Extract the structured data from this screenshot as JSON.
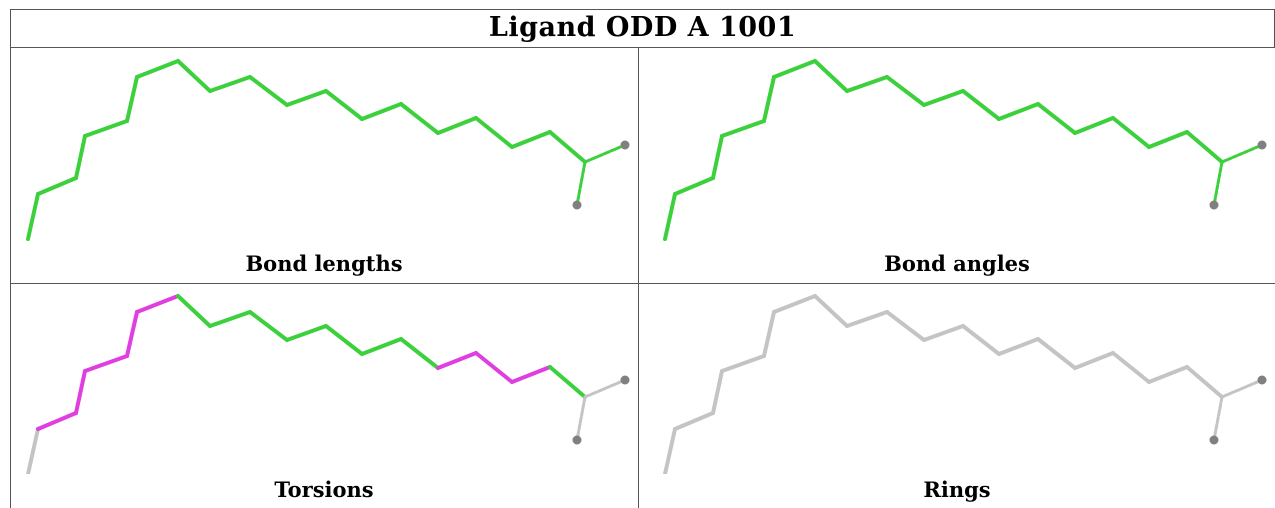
{
  "table": {
    "title": "Ligand ODD A 1001",
    "panels": [
      {
        "id": "bond-lengths",
        "caption": "Bond lengths"
      },
      {
        "id": "bond-angles",
        "caption": "Bond angles"
      },
      {
        "id": "torsions",
        "caption": "Torsions"
      },
      {
        "id": "rings",
        "caption": "Rings"
      }
    ]
  },
  "colors": {
    "ok": "#3cd03c",
    "outlier": "#e03ee0",
    "neutral": "#c4c4c4",
    "atom": "#808080",
    "border": "#555555"
  }
}
